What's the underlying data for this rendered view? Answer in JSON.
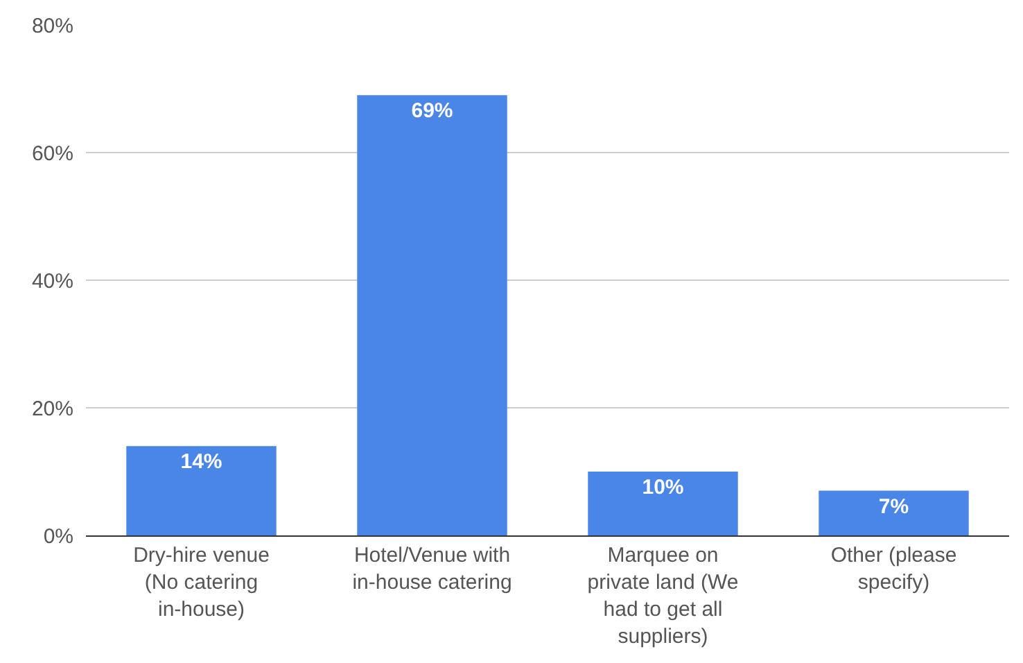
{
  "chart_data": {
    "type": "bar",
    "categories": [
      "Dry-hire venue (No catering in-house)",
      "Hotel/Venue with in-house catering",
      "Marquee on private land (We had to get all suppliers)",
      "Other (please specify)"
    ],
    "values": [
      14,
      69,
      10,
      7
    ],
    "value_labels": [
      "14%",
      "69%",
      "10%",
      "7%"
    ],
    "color": "#4a86e8",
    "ylim": [
      0,
      80
    ],
    "yticks": [
      {
        "value": 0,
        "label": "0%"
      },
      {
        "value": 20,
        "label": "20%"
      },
      {
        "value": 40,
        "label": "40%"
      },
      {
        "value": 60,
        "label": "60%"
      },
      {
        "value": 80,
        "label": "80%"
      }
    ],
    "grid": "y"
  }
}
